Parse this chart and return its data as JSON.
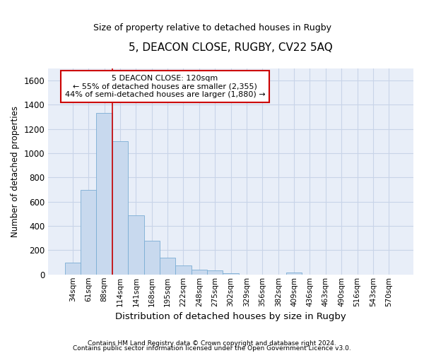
{
  "title": "5, DEACON CLOSE, RUGBY, CV22 5AQ",
  "subtitle": "Size of property relative to detached houses in Rugby",
  "xlabel": "Distribution of detached houses by size in Rugby",
  "ylabel": "Number of detached properties",
  "bar_color": "#c8d9ee",
  "bar_edgecolor": "#7aadd4",
  "categories": [
    "34sqm",
    "61sqm",
    "88sqm",
    "114sqm",
    "141sqm",
    "168sqm",
    "195sqm",
    "222sqm",
    "248sqm",
    "275sqm",
    "302sqm",
    "329sqm",
    "356sqm",
    "382sqm",
    "409sqm",
    "436sqm",
    "463sqm",
    "490sqm",
    "516sqm",
    "543sqm",
    "570sqm"
  ],
  "values": [
    100,
    695,
    1335,
    1100,
    490,
    280,
    140,
    75,
    40,
    35,
    10,
    0,
    0,
    0,
    15,
    0,
    0,
    0,
    0,
    0,
    0
  ],
  "ylim": [
    0,
    1700
  ],
  "yticks": [
    0,
    200,
    400,
    600,
    800,
    1000,
    1200,
    1400,
    1600
  ],
  "property_line_bin": 3,
  "annotation_text": "5 DEACON CLOSE: 120sqm\n← 55% of detached houses are smaller (2,355)\n44% of semi-detached houses are larger (1,880) →",
  "annotation_box_facecolor": "#ffffff",
  "annotation_box_edgecolor": "#cc0000",
  "footer_line1": "Contains HM Land Registry data © Crown copyright and database right 2024.",
  "footer_line2": "Contains public sector information licensed under the Open Government Licence v3.0.",
  "grid_color": "#c8d4e8",
  "background_color": "#e8eef8"
}
